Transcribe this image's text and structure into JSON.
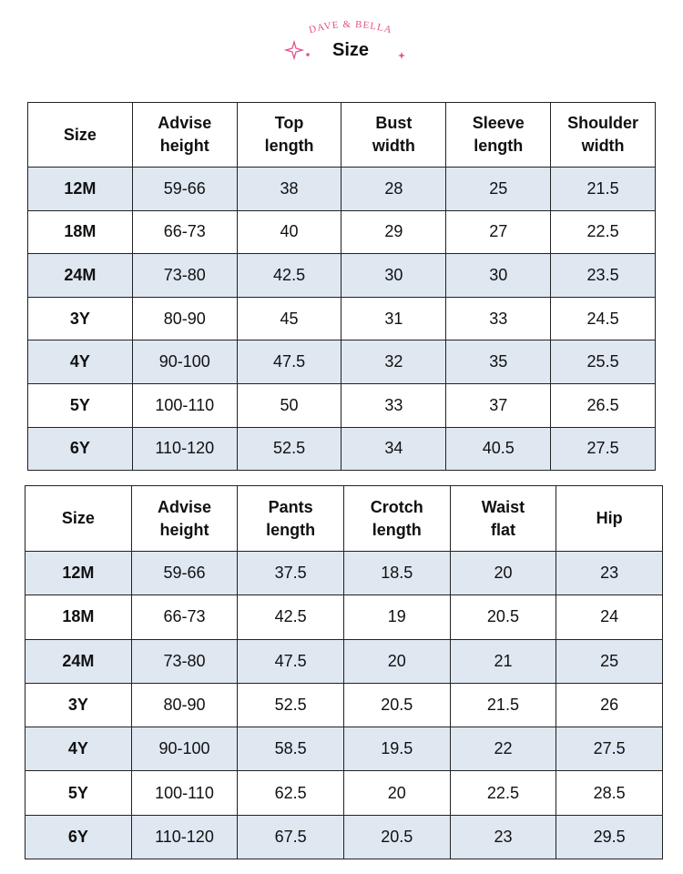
{
  "header": {
    "brand": "DAVE & BELLA",
    "title": "Size"
  },
  "tables": [
    {
      "columns": [
        "Size",
        "Advise\nheight",
        "Top\nlength",
        "Bust\nwidth",
        "Sleeve\nlength",
        "Shoulder\nwidth"
      ],
      "rows": [
        [
          "12M",
          "59-66",
          "38",
          "28",
          "25",
          "21.5"
        ],
        [
          "18M",
          "66-73",
          "40",
          "29",
          "27",
          "22.5"
        ],
        [
          "24M",
          "73-80",
          "42.5",
          "30",
          "30",
          "23.5"
        ],
        [
          "3Y",
          "80-90",
          "45",
          "31",
          "33",
          "24.5"
        ],
        [
          "4Y",
          "90-100",
          "47.5",
          "32",
          "35",
          "25.5"
        ],
        [
          "5Y",
          "100-110",
          "50",
          "33",
          "37",
          "26.5"
        ],
        [
          "6Y",
          "110-120",
          "52.5",
          "34",
          "40.5",
          "27.5"
        ]
      ]
    },
    {
      "columns": [
        "Size",
        "Advise\nheight",
        "Pants\nlength",
        "Crotch\nlength",
        "Waist\nflat",
        "Hip"
      ],
      "rows": [
        [
          "12M",
          "59-66",
          "37.5",
          "18.5",
          "20",
          "23"
        ],
        [
          "18M",
          "66-73",
          "42.5",
          "19",
          "20.5",
          "24"
        ],
        [
          "24M",
          "73-80",
          "47.5",
          "20",
          "21",
          "25"
        ],
        [
          "3Y",
          "80-90",
          "52.5",
          "20.5",
          "21.5",
          "26"
        ],
        [
          "4Y",
          "90-100",
          "58.5",
          "19.5",
          "22",
          "27.5"
        ],
        [
          "5Y",
          "100-110",
          "62.5",
          "20",
          "22.5",
          "28.5"
        ],
        [
          "6Y",
          "110-120",
          "67.5",
          "20.5",
          "23",
          "29.5"
        ]
      ]
    }
  ]
}
